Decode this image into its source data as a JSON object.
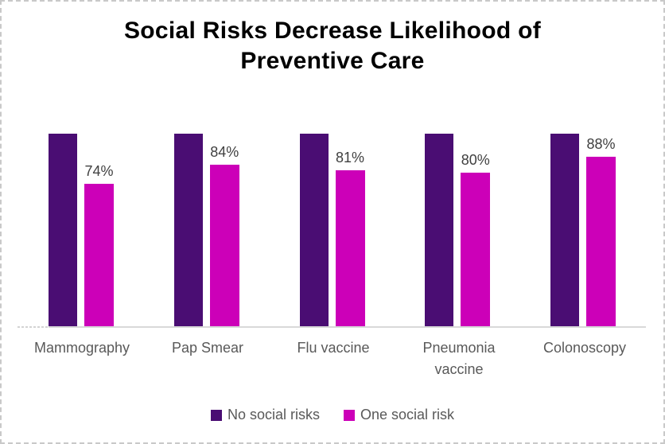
{
  "title_lines": [
    "Social Risks Decrease Likelihood of",
    "Preventive Care"
  ],
  "colors": {
    "no_social_risks": "#4A0D73",
    "one_social_risk": "#CC00B8",
    "axis_line": "#D9D9D9",
    "data_label_text": "#404040",
    "category_text": "#595959",
    "legend_text": "#595959",
    "title_text": "#000000",
    "frame_border": "#C9C9C9"
  },
  "chart_data": {
    "type": "bar",
    "title": "Social Risks Decrease Likelihood of Preventive Care",
    "categories": [
      "Mammography",
      "Pap Smear",
      "Flu vaccine",
      "Pneumonia vaccine",
      "Colonoscopy"
    ],
    "series": [
      {
        "name": "No social risks",
        "color": "#4A0D73",
        "values": [
          100,
          100,
          100,
          100,
          100
        ],
        "data_labels": null
      },
      {
        "name": "One social risk",
        "color": "#CC00B8",
        "values": [
          74,
          84,
          81,
          80,
          88
        ],
        "data_labels": [
          "74%",
          "84%",
          "81%",
          "80%",
          "88%"
        ]
      }
    ],
    "xlabel": "",
    "ylabel": "",
    "ylim": [
      0,
      100
    ],
    "unit": "percent",
    "grid": false,
    "y_axis_visible": false,
    "legend_position": "bottom"
  }
}
